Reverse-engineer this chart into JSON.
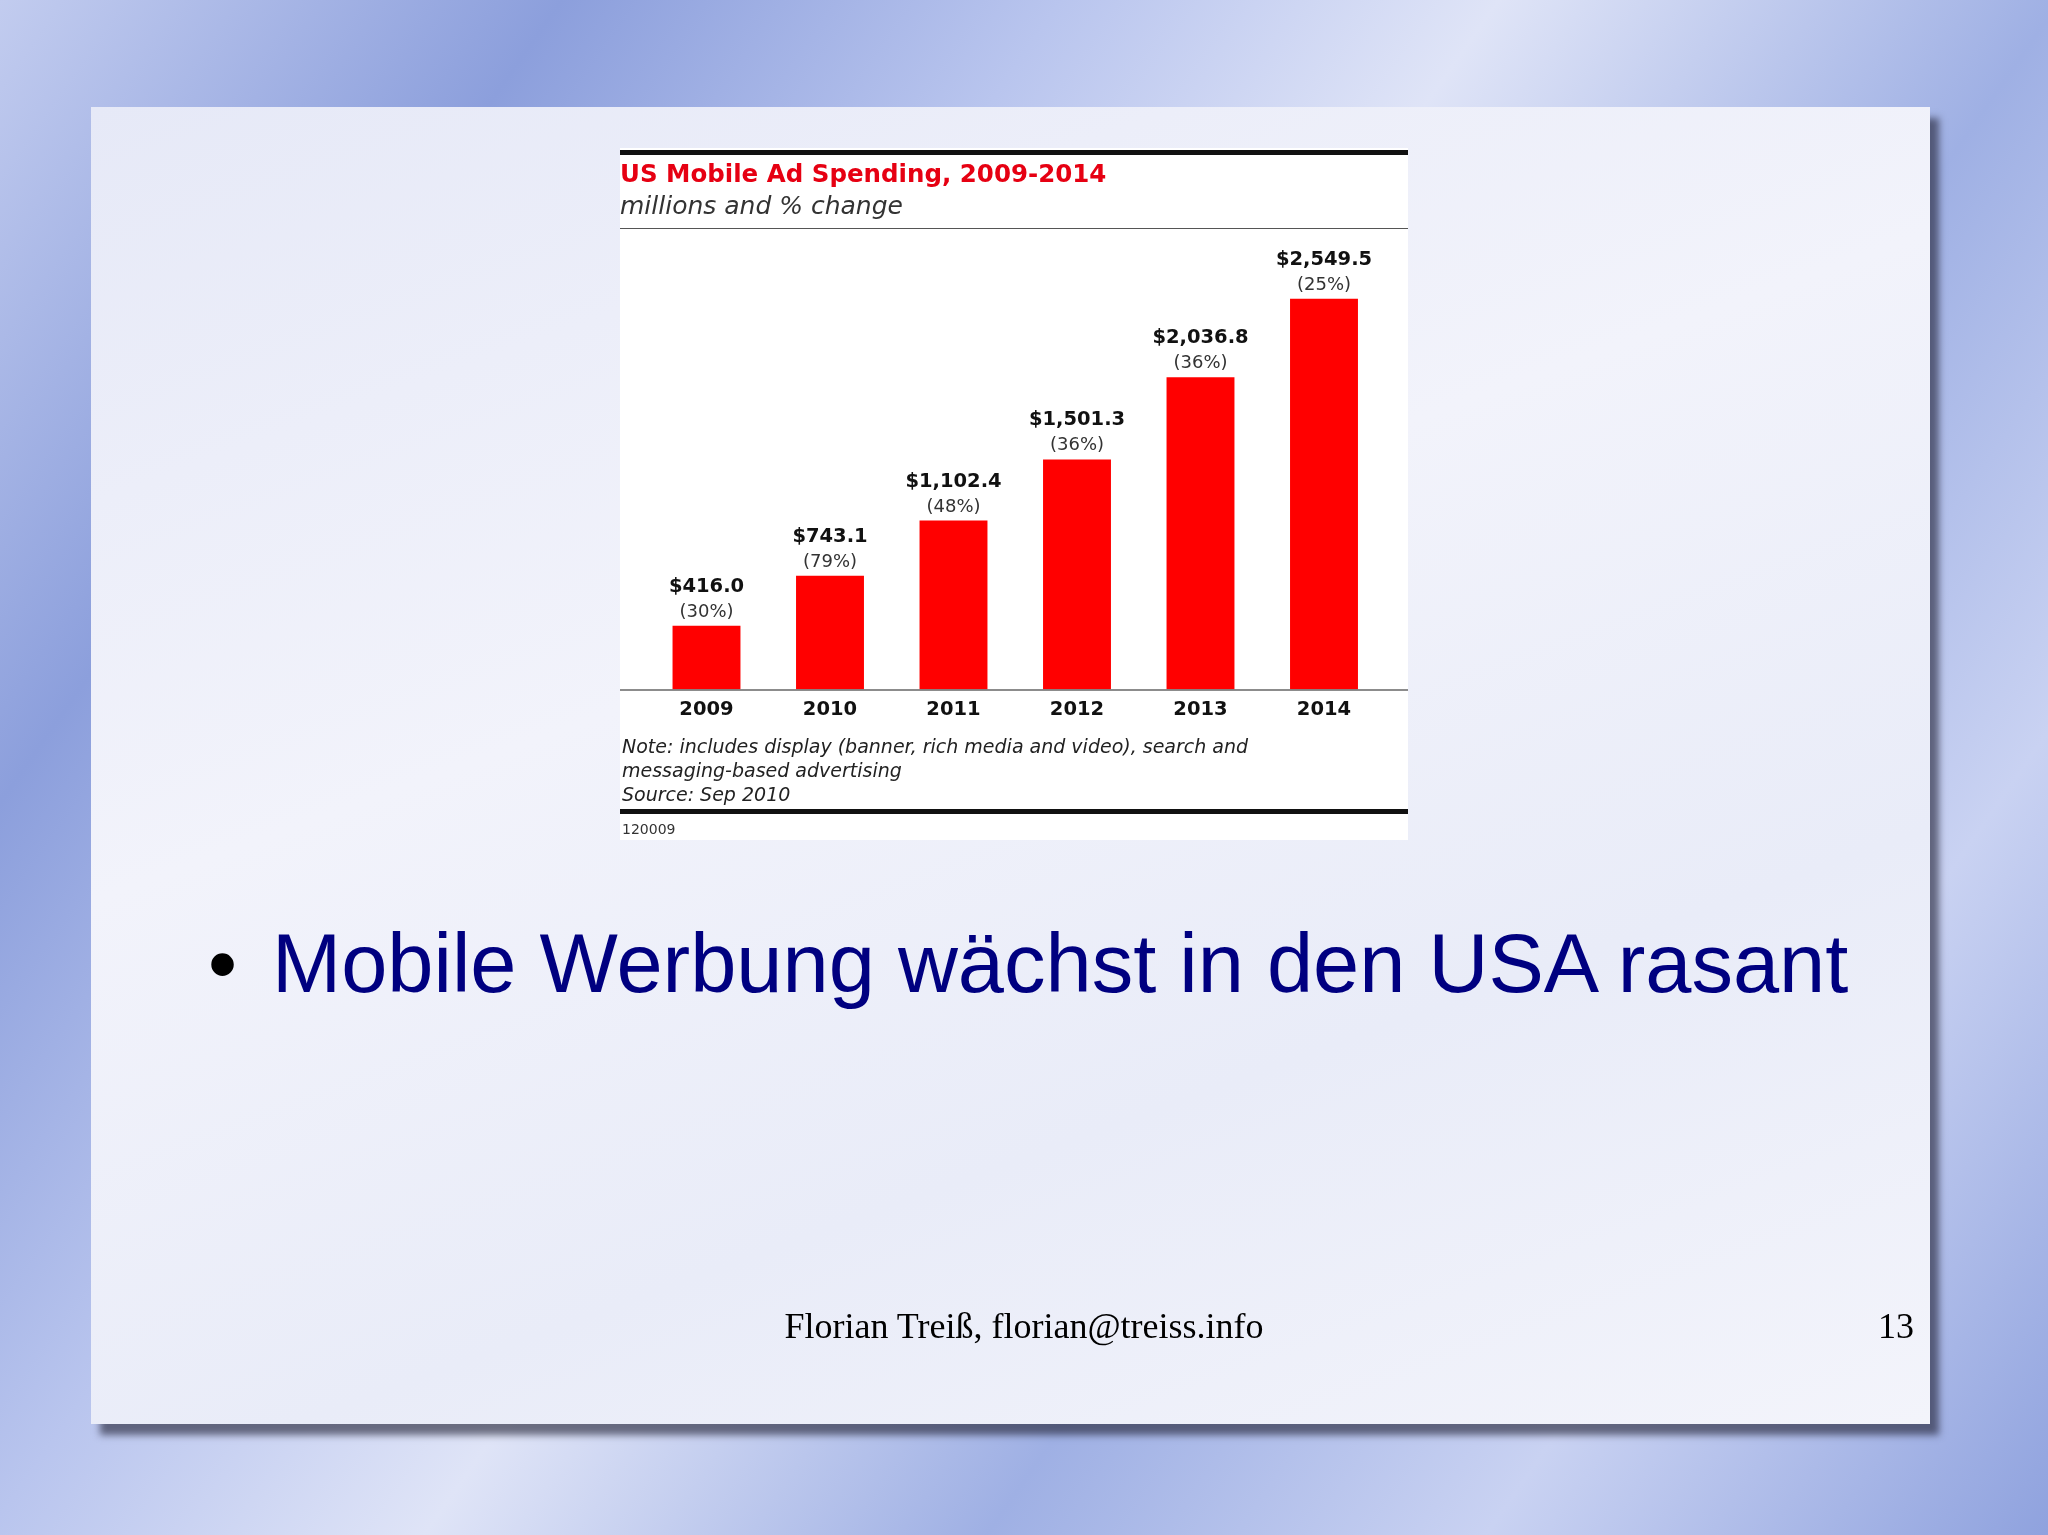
{
  "chart_data": {
    "type": "bar",
    "title": "US Mobile Ad Spending, 2009-2014",
    "subtitle": "millions and % change",
    "categories": [
      "2009",
      "2010",
      "2011",
      "2012",
      "2013",
      "2014"
    ],
    "values": [
      416.0,
      743.1,
      1102.4,
      1501.3,
      2036.8,
      2549.5
    ],
    "color": "#ff0000",
    "value_labels": [
      "$416.0\n(30%)",
      "$743.1\n(79%)",
      "$1,102.4\n(48%)",
      "$1,501.3\n(36%)",
      "$2,036.8\n(36%)",
      "$2,549.5\n(25%)"
    ],
    "annotations": [
      "Note: includes display (banner, rich media and video), search and messaging-based advertising",
      "Source: Sep 2010",
      "120009",
      "•",
      "Mobile Werbung wächst in den USA rasant",
      "Florian Treiß, florian@treiss.info",
      "13"
    ]
  }
}
